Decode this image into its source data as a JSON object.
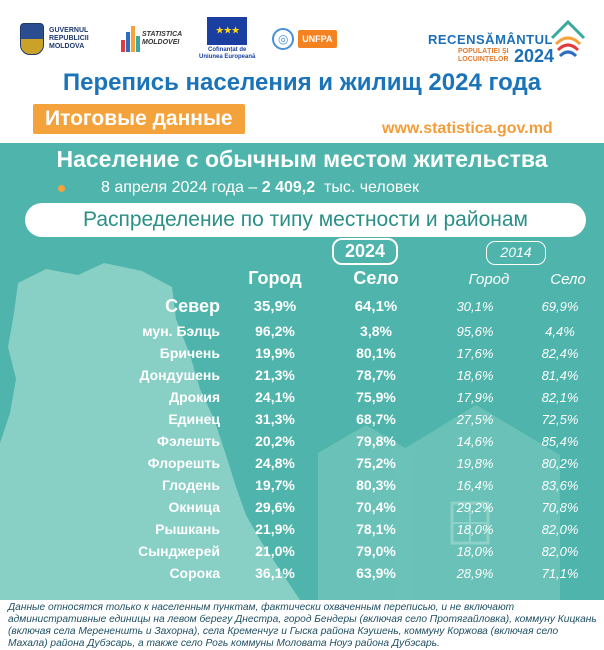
{
  "logos": {
    "gov": "GUVERNUL REPUBLICII MOLDOVA",
    "stat_top": "STATISTICA",
    "stat_bottom": "MOLDOVEI",
    "eu": "Cofinanțat de Uniunea Europeană",
    "unfpa": "UNFPA",
    "census_title": "RECENSĂMÂNTUL",
    "census_sub1": "POPULAȚIEI ȘI",
    "census_sub2": "LOCUINȚELOR",
    "census_year": "2024"
  },
  "header": {
    "title": "Перепись населения и жилищ 2024 года",
    "badge": "Итоговые данные",
    "website": "www.statistica.gov.md"
  },
  "panel": {
    "title": "Население с обычным местом жительства",
    "date_prefix": "8 апреля 2024 года –",
    "date_value": "2 409,2",
    "date_unit": "тыс. человек",
    "subtitle": "Распределение по типу местности и районам",
    "year_current": "2024",
    "year_previous": "2014",
    "col_urban": "Город",
    "col_rural": "Село"
  },
  "rows": [
    {
      "name": "Север",
      "u24": "35,9%",
      "r24": "64,1%",
      "u14": "30,1%",
      "r14": "69,9%"
    },
    {
      "name": "мун. Бэлць",
      "u24": "96,2%",
      "r24": "3,8%",
      "u14": "95,6%",
      "r14": "4,4%"
    },
    {
      "name": "Бричень",
      "u24": "19,9%",
      "r24": "80,1%",
      "u14": "17,6%",
      "r14": "82,4%"
    },
    {
      "name": "Дондушень",
      "u24": "21,3%",
      "r24": "78,7%",
      "u14": "18,6%",
      "r14": "81,4%"
    },
    {
      "name": "Дрокия",
      "u24": "24,1%",
      "r24": "75,9%",
      "u14": "17,9%",
      "r14": "82,1%"
    },
    {
      "name": "Единец",
      "u24": "31,3%",
      "r24": "68,7%",
      "u14": "27,5%",
      "r14": "72,5%"
    },
    {
      "name": "Фэлешть",
      "u24": "20,2%",
      "r24": "79,8%",
      "u14": "14,6%",
      "r14": "85,4%"
    },
    {
      "name": "Флорешть",
      "u24": "24,8%",
      "r24": "75,2%",
      "u14": "19,8%",
      "r14": "80,2%"
    },
    {
      "name": "Глодень",
      "u24": "19,7%",
      "r24": "80,3%",
      "u14": "16,4%",
      "r14": "83,6%"
    },
    {
      "name": "Окница",
      "u24": "29,6%",
      "r24": "70,4%",
      "u14": "29,2%",
      "r14": "70,8%"
    },
    {
      "name": "Рышкань",
      "u24": "21,9%",
      "r24": "78,1%",
      "u14": "18,0%",
      "r14": "82,0%"
    },
    {
      "name": "Сынджерей",
      "u24": "21,0%",
      "r24": "79,0%",
      "u14": "18,0%",
      "r14": "82,0%"
    },
    {
      "name": "Сорока",
      "u24": "36,1%",
      "r24": "63,9%",
      "u14": "28,9%",
      "r14": "71,1%"
    }
  ],
  "footnote": "Данные относятся только к населенным пунктам, фактически охваченным переписью, и не включают административные единицы на левом берегу Днестра, город Бендеры (включая село Протягайловка), коммуну Кицкань (включая села Мерененшть и Захорна), села Кременчуг и Гыска района Кэушень, коммуну Коржова (включая село Махала) района Дубэсарь, а также село Рогь коммуны Моловата Ноуэ района Дубэсарь."
}
